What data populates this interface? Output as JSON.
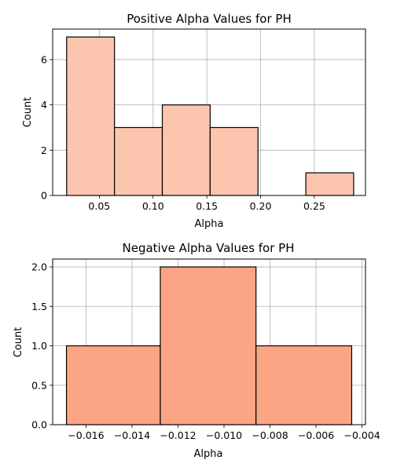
{
  "chart_data": [
    {
      "type": "bar",
      "title": "Positive Alpha Values for PH",
      "xlabel": "Alpha",
      "ylabel": "Count",
      "bar_color": "#fcc5ae",
      "edge_color": "#000000",
      "grid": true,
      "xlim": [
        0.0066,
        0.2976
      ],
      "ylim": [
        0,
        7.35
      ],
      "bins": [
        {
          "x0": 0.0196,
          "x1": 0.0641,
          "count": 7
        },
        {
          "x0": 0.0641,
          "x1": 0.1086,
          "count": 3
        },
        {
          "x0": 0.1086,
          "x1": 0.1531,
          "count": 4
        },
        {
          "x0": 0.1531,
          "x1": 0.1976,
          "count": 3
        },
        {
          "x0": 0.1976,
          "x1": 0.2421,
          "count": 0
        },
        {
          "x0": 0.2421,
          "x1": 0.2866,
          "count": 1
        }
      ],
      "xticks": [
        {
          "value": 0.05,
          "label": "0.05"
        },
        {
          "value": 0.1,
          "label": "0.10"
        },
        {
          "value": 0.15,
          "label": "0.15"
        },
        {
          "value": 0.2,
          "label": "0.20"
        },
        {
          "value": 0.25,
          "label": "0.25"
        }
      ],
      "yticks": [
        {
          "value": 0,
          "label": "0"
        },
        {
          "value": 2,
          "label": "2"
        },
        {
          "value": 4,
          "label": "4"
        },
        {
          "value": 6,
          "label": "6"
        }
      ]
    },
    {
      "type": "bar",
      "title": "Negative Alpha Values for PH",
      "xlabel": "Alpha",
      "ylabel": "Count",
      "bar_color": "#fca584",
      "edge_color": "#000000",
      "grid": true,
      "xlim": [
        -0.01745,
        -0.00385
      ],
      "ylim": [
        0,
        2.1
      ],
      "bins": [
        {
          "x0": -0.01685,
          "x1": -0.01277,
          "count": 1
        },
        {
          "x0": -0.01277,
          "x1": -0.00861,
          "count": 2
        },
        {
          "x0": -0.00861,
          "x1": -0.00445,
          "count": 1
        }
      ],
      "xticks": [
        {
          "value": -0.016,
          "label": "−0.016"
        },
        {
          "value": -0.014,
          "label": "−0.014"
        },
        {
          "value": -0.012,
          "label": "−0.012"
        },
        {
          "value": -0.01,
          "label": "−0.010"
        },
        {
          "value": -0.008,
          "label": "−0.008"
        },
        {
          "value": -0.006,
          "label": "−0.006"
        },
        {
          "value": -0.004,
          "label": "−0.004"
        }
      ],
      "yticks": [
        {
          "value": 0.0,
          "label": "0.0"
        },
        {
          "value": 0.5,
          "label": "0.5"
        },
        {
          "value": 1.0,
          "label": "1.0"
        },
        {
          "value": 1.5,
          "label": "1.5"
        },
        {
          "value": 2.0,
          "label": "2.0"
        }
      ]
    }
  ]
}
